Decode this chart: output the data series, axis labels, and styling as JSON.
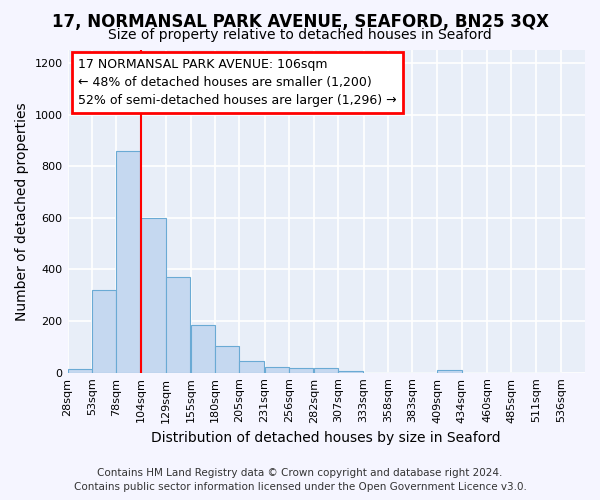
{
  "title": "17, NORMANSAL PARK AVENUE, SEAFORD, BN25 3QX",
  "subtitle": "Size of property relative to detached houses in Seaford",
  "xlabel": "Distribution of detached houses by size in Seaford",
  "ylabel": "Number of detached properties",
  "footer_line1": "Contains HM Land Registry data © Crown copyright and database right 2024.",
  "footer_line2": "Contains public sector information licensed under the Open Government Licence v3.0.",
  "annotation_line1": "17 NORMANSAL PARK AVENUE: 106sqm",
  "annotation_line2": "← 48% of detached houses are smaller (1,200)",
  "annotation_line3": "52% of semi-detached houses are larger (1,296) →",
  "bar_left_edges": [
    28,
    53,
    78,
    104,
    129,
    155,
    180,
    205,
    231,
    256,
    282,
    307,
    333,
    358,
    383,
    409,
    434,
    460,
    485,
    511
  ],
  "bar_heights": [
    15,
    320,
    860,
    600,
    370,
    185,
    105,
    45,
    22,
    18,
    18,
    5,
    0,
    0,
    0,
    12,
    0,
    0,
    0,
    0
  ],
  "bar_color": "#c5d8f0",
  "bar_edge_color": "#6aaad4",
  "red_line_x": 104,
  "ylim": [
    0,
    1250
  ],
  "yticks": [
    0,
    200,
    400,
    600,
    800,
    1000,
    1200
  ],
  "xtick_labels": [
    "28sqm",
    "53sqm",
    "78sqm",
    "104sqm",
    "129sqm",
    "155sqm",
    "180sqm",
    "205sqm",
    "231sqm",
    "256sqm",
    "282sqm",
    "307sqm",
    "333sqm",
    "358sqm",
    "383sqm",
    "409sqm",
    "434sqm",
    "460sqm",
    "485sqm",
    "511sqm",
    "536sqm"
  ],
  "background_color": "#e8eef8",
  "grid_color": "#ffffff",
  "fig_bg_color": "#f5f5ff",
  "title_fontsize": 12,
  "subtitle_fontsize": 10,
  "axis_label_fontsize": 10,
  "tick_fontsize": 8,
  "footer_fontsize": 7.5,
  "annotation_fontsize": 9
}
